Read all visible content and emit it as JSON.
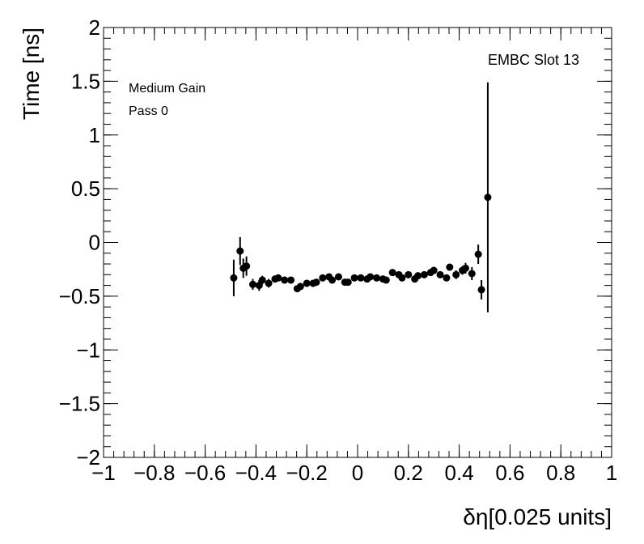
{
  "chart_data": {
    "type": "scatter",
    "title": "",
    "xlabel": "δη[0.025 units]",
    "ylabel": "Time [ns]",
    "xlim": [
      -1,
      1
    ],
    "ylim": [
      -2,
      2
    ],
    "xticks": [
      -1,
      -0.8,
      -0.6,
      -0.4,
      -0.2,
      0,
      0.2,
      0.4,
      0.6,
      0.8,
      1
    ],
    "xtick_labels": [
      "−1",
      "−0.8",
      "−0.6",
      "−0.4",
      "−0.2",
      "0",
      "0.2",
      "0.4",
      "0.6",
      "0.8",
      "1"
    ],
    "yticks": [
      -2,
      -1.5,
      -1,
      -0.5,
      0,
      0.5,
      1,
      1.5,
      2
    ],
    "ytick_labels": [
      "−2",
      "−1.5",
      "−1",
      "−0.5",
      "0",
      "0.5",
      "1",
      "1.5",
      "2"
    ],
    "grid": false,
    "marker_color": "#000000",
    "annotations": {
      "gain": "Medium Gain",
      "pass": "Pass 0",
      "slot": "EMBC Slot 13"
    },
    "series": [
      {
        "x": [
          -0.4875,
          -0.4625,
          -0.45,
          -0.4375,
          -0.4125,
          -0.3875,
          -0.375,
          -0.35,
          -0.325,
          -0.3125,
          -0.2875,
          -0.2625,
          -0.2375,
          -0.225,
          -0.2,
          -0.175,
          -0.1625,
          -0.1375,
          -0.1125,
          -0.1,
          -0.075,
          -0.05,
          -0.0375,
          -0.0125,
          0.0125,
          0.0375,
          0.05,
          0.075,
          0.1,
          0.1125,
          0.1375,
          0.1625,
          0.175,
          0.2,
          0.225,
          0.2375,
          0.2625,
          0.2875,
          0.3,
          0.325,
          0.35,
          0.3625,
          0.3875,
          0.4125,
          0.425,
          0.45,
          0.475,
          0.4875,
          0.5125
        ],
        "y": [
          -0.33,
          -0.08,
          -0.24,
          -0.22,
          -0.39,
          -0.4,
          -0.35,
          -0.38,
          -0.34,
          -0.33,
          -0.35,
          -0.35,
          -0.43,
          -0.41,
          -0.38,
          -0.38,
          -0.37,
          -0.33,
          -0.32,
          -0.35,
          -0.32,
          -0.37,
          -0.37,
          -0.33,
          -0.33,
          -0.34,
          -0.32,
          -0.33,
          -0.34,
          -0.35,
          -0.28,
          -0.3,
          -0.33,
          -0.3,
          -0.34,
          -0.31,
          -0.3,
          -0.28,
          -0.26,
          -0.3,
          -0.33,
          -0.23,
          -0.3,
          -0.26,
          -0.24,
          -0.29,
          -0.11,
          -0.44,
          0.42
        ],
        "yerr": [
          0.17,
          0.13,
          0.09,
          0.09,
          0.05,
          0.05,
          0.04,
          0.04,
          0.03,
          0.03,
          0.03,
          0.03,
          0.03,
          0.03,
          0.03,
          0.03,
          0.03,
          0.03,
          0.03,
          0.03,
          0.03,
          0.03,
          0.03,
          0.03,
          0.03,
          0.03,
          0.03,
          0.03,
          0.03,
          0.03,
          0.03,
          0.03,
          0.03,
          0.03,
          0.03,
          0.03,
          0.03,
          0.03,
          0.03,
          0.03,
          0.03,
          0.03,
          0.04,
          0.04,
          0.05,
          0.06,
          0.09,
          0.09,
          1.07
        ]
      }
    ]
  }
}
